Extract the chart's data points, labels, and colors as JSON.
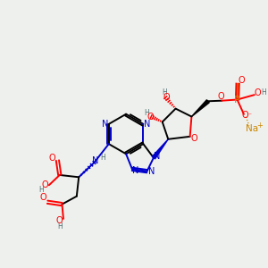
{
  "background_color": "#edf0ed",
  "atom_colors": {
    "C": "#000000",
    "N": "#0000cc",
    "O": "#ff0000",
    "P": "#cc8800",
    "Na": "#cc8800",
    "H": "#507070"
  },
  "lw": 1.4,
  "fs": 7.0
}
